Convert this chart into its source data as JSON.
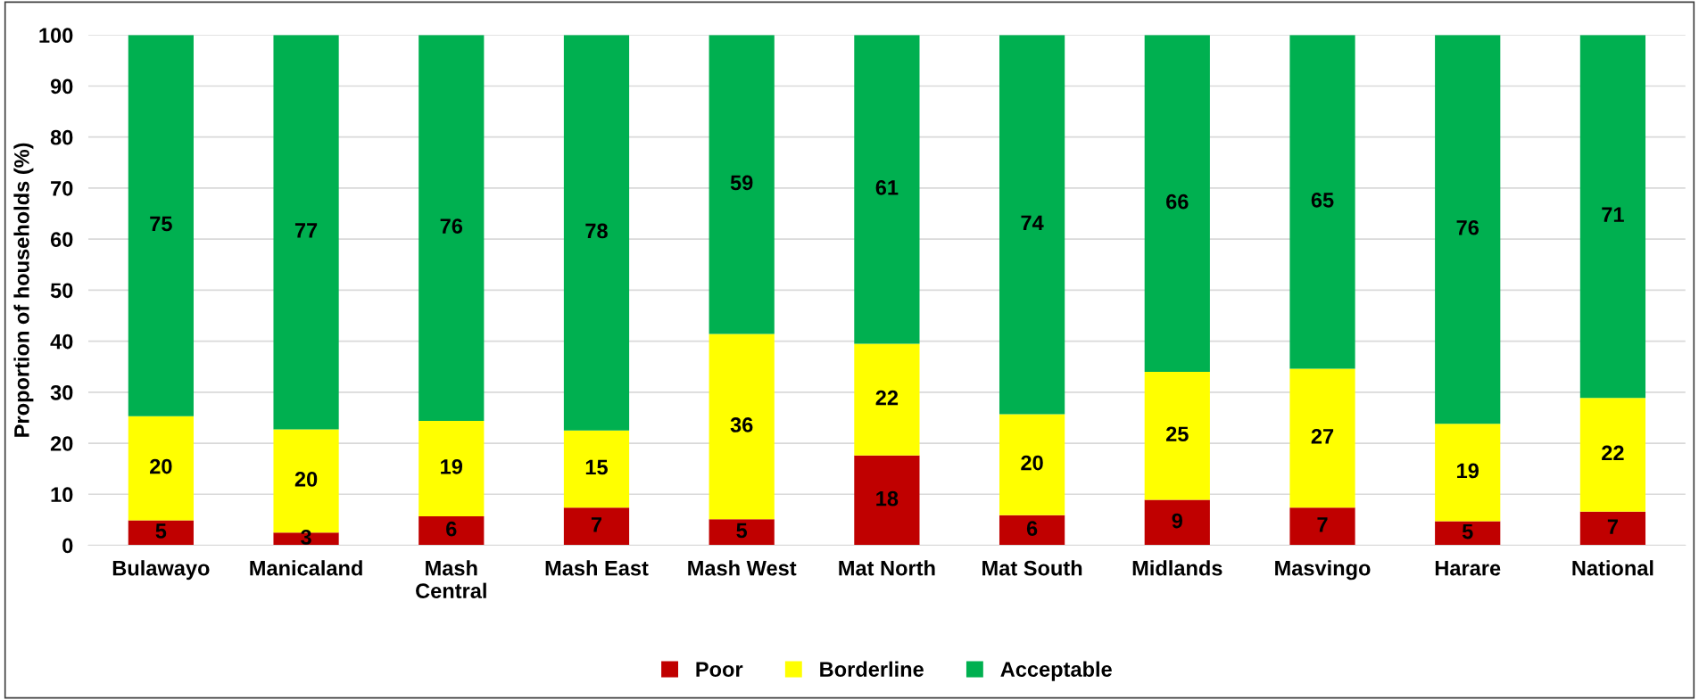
{
  "chart_data": {
    "type": "bar",
    "stacked": true,
    "ylabel": "Proportion of households (%)",
    "categories": [
      "Bulawayo",
      "Manicaland",
      "Mash\nCentral",
      "Mash East",
      "Mash West",
      "Mat North",
      "Mat South",
      "Midlands",
      "Masvingo",
      "Harare",
      "National"
    ],
    "series": [
      {
        "name": "Poor",
        "color": "#c00000",
        "values": [
          4.9,
          2.5,
          5.7,
          7.4,
          5.1,
          17.6,
          5.9,
          8.9,
          7.4,
          4.7,
          6.6
        ],
        "value_labels": [
          "5",
          "3",
          "6",
          "7",
          "5",
          "18",
          "6",
          "9",
          "7",
          "5",
          "7"
        ]
      },
      {
        "name": "Borderline",
        "color": "#ffff00",
        "values": [
          20.4,
          20.2,
          18.7,
          15.1,
          36.3,
          21.9,
          19.8,
          25.1,
          27.2,
          19.1,
          22.3
        ],
        "value_labels": [
          "20",
          "20",
          "19",
          "15",
          "36",
          "22",
          "20",
          "25",
          "27",
          "19",
          "22"
        ]
      },
      {
        "name": "Acceptable",
        "color": "#00b050",
        "values": [
          74.7,
          77.3,
          75.6,
          77.5,
          58.6,
          60.5,
          74.3,
          66.0,
          65.4,
          76.2,
          71.1
        ],
        "value_labels": [
          "75",
          "77",
          "76",
          "78",
          "59",
          "61",
          "74",
          "66",
          "65",
          "76",
          "71"
        ]
      }
    ],
    "ylim": [
      0,
      100
    ],
    "yticks": [
      0,
      10,
      20,
      30,
      40,
      50,
      60,
      70,
      80,
      90,
      100
    ],
    "grid": "y",
    "legend": "bottom"
  }
}
